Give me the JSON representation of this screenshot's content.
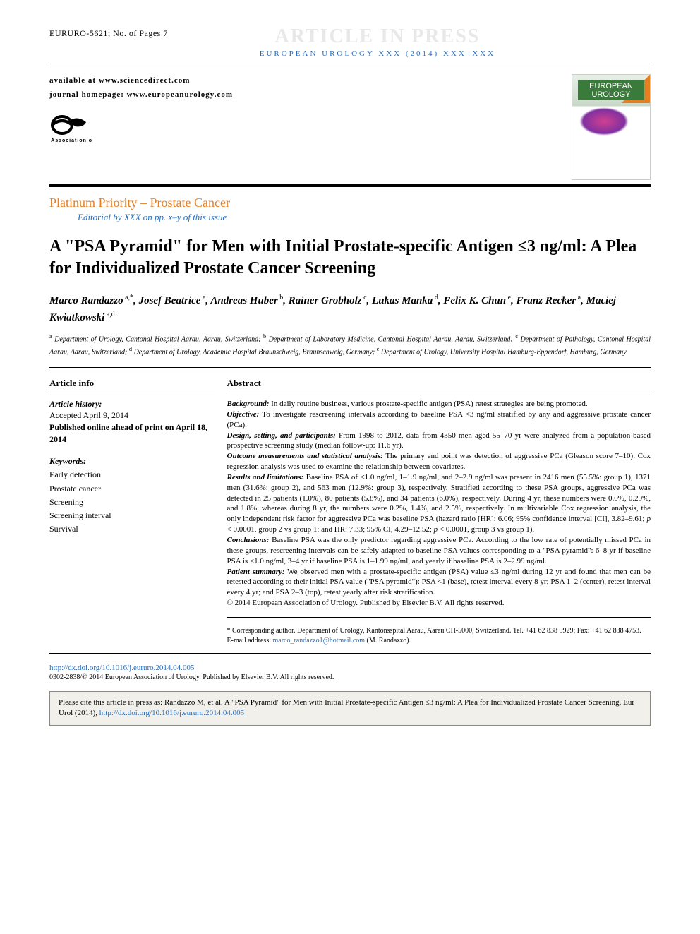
{
  "header": {
    "manuscript_id": "EURURO-5621; No. of Pages 7",
    "article_in_press": "ARTICLE IN PRESS",
    "journal_banner": "EUROPEAN UROLOGY XXX (2014) XXX–XXX"
  },
  "availability": {
    "line1": "available at www.sciencedirect.com",
    "line2": "journal homepage: www.europeanurology.com"
  },
  "cover": {
    "title": "EUROPEAN UROLOGY"
  },
  "logo": {
    "org": "European Association of Urology"
  },
  "section": {
    "label": "Platinum Priority – Prostate Cancer",
    "editorial": "Editorial by XXX on pp. x–y of this issue"
  },
  "title": "A \"PSA Pyramid\" for Men with Initial Prostate-specific Antigen ≤3 ng/ml: A Plea for Individualized Prostate Cancer Screening",
  "authors_html": "Marco Randazzo<sup> a,*</sup>, Josef Beatrice<sup> a</sup>, Andreas Huber<sup> b</sup>, Rainer Grobholz<sup> c</sup>, Lukas Manka<sup> d</sup>, Felix K. Chun<sup> e</sup>, Franz Recker<sup> a</sup>, Maciej Kwiatkowski<sup> a,d</sup>",
  "affiliations_html": "<sup>a</sup> Department of Urology, Cantonal Hospital Aarau, Aarau, Switzerland; <sup>b</sup> Department of Laboratory Medicine, Cantonal Hospital Aarau, Aarau, Switzerland; <sup>c</sup> Department of Pathology, Cantonal Hospital Aarau, Aarau, Switzerland; <sup>d</sup> Department of Urology, Academic Hospital Braunschweig, Braunschweig, Germany; <sup>e</sup> Department of Urology, University Hospital Hamburg-Eppendorf, Hamburg, Germany",
  "article_info": {
    "heading": "Article info",
    "history_label": "Article history:",
    "accepted": "Accepted April 9, 2014",
    "published": "Published online ahead of print on April 18, 2014",
    "keywords_label": "Keywords:",
    "keywords": [
      "Early detection",
      "Prostate cancer",
      "Screening",
      "Screening interval",
      "Survival"
    ]
  },
  "abstract": {
    "heading": "Abstract",
    "body_html": "<b><i>Background:</i></b> In daily routine business, various prostate-specific antigen (PSA) retest strategies are being promoted.<br><b><i>Objective:</i></b> To investigate rescreening intervals according to baseline PSA &lt;3 ng/ml stratified by any and aggressive prostate cancer (PCa).<br><b><i>Design, setting, and participants:</i></b> From 1998 to 2012, data from 4350 men aged 55–70 yr were analyzed from a population-based prospective screening study (median follow-up: 11.6 yr).<br><b><i>Outcome measurements and statistical analysis:</i></b> The primary end point was detection of aggressive PCa (Gleason score 7–10). Cox regression analysis was used to examine the relationship between covariates.<br><b><i>Results and limitations:</i></b> Baseline PSA of &lt;1.0 ng/ml, 1–1.9 ng/ml, and 2–2.9 ng/ml was present in 2416 men (55.5%: group 1), 1371 men (31.6%: group 2), and 563 men (12.9%: group 3), respectively. Stratified according to these PSA groups, aggressive PCa was detected in 25 patients (1.0%), 80 patients (5.8%), and 34 patients (6.0%), respectively. During 4 yr, these numbers were 0.0%, 0.29%, and 1.8%, whereas during 8 yr, the numbers were 0.2%, 1.4%, and 2.5%, respectively. In multivariable Cox regression analysis, the only independent risk factor for aggressive PCa was baseline PSA (hazard ratio [HR]: 6.06; 95% confidence interval [CI], 3.82–9.61; <i>p</i> &lt; 0.0001, group 2 vs group 1; and HR: 7.33; 95% CI, 4.29–12.52; <i>p</i> &lt; 0.0001, group 3 vs group 1).<br><b><i>Conclusions:</i></b> Baseline PSA was the only predictor regarding aggressive PCa. According to the low rate of potentially missed PCa in these groups, rescreening intervals can be safely adapted to baseline PSA values corresponding to a \"PSA pyramid\": 6–8 yr if baseline PSA is &lt;1.0 ng/ml, 3–4 yr if baseline PSA is 1–1.99 ng/ml, and yearly if baseline PSA is 2–2.99 ng/ml.<br><b><i>Patient summary:</i></b> We observed men with a prostate-specific antigen (PSA) value ≤3 ng/ml during 12 yr and found that men can be retested according to their initial PSA value (\"PSA pyramid\"): PSA &lt;1 (base), retest interval every 8 yr; PSA 1–2 (center), retest interval every 4 yr; and PSA 2–3 (top), retest yearly after risk stratification.<br>© 2014 European Association of Urology. Published by Elsevier B.V. All rights reserved."
  },
  "corresponding": {
    "text": "* Corresponding author. Department of Urology, Kantonsspital Aarau, Aarau CH-5000, Switzerland. Tel. +41 62 838 5929; Fax: +41 62 838 4753.",
    "email_label": "E-mail address: ",
    "email": "marco_randazzo1@hotmail.com",
    "email_suffix": " (M. Randazzo)."
  },
  "footer": {
    "doi": "http://dx.doi.org/10.1016/j.eururo.2014.04.005",
    "issn_copy": "0302-2838/© 2014 European Association of Urology. Published by Elsevier B.V. All rights reserved."
  },
  "cite_box": {
    "text": "Please cite this article in press as: Randazzo M, et al. A \"PSA Pyramid\" for Men with Initial Prostate-specific Antigen ≤3 ng/ml: A Plea for Individualized Prostate Cancer Screening. Eur Urol (2014), ",
    "link": "http://dx.doi.org/10.1016/j.eururo.2014.04.005"
  },
  "colors": {
    "accent_orange": "#e67e22",
    "link_blue": "#2a6ebb",
    "watermark_grey": "#e8e8e8",
    "cite_bg": "#f2f0ea"
  }
}
